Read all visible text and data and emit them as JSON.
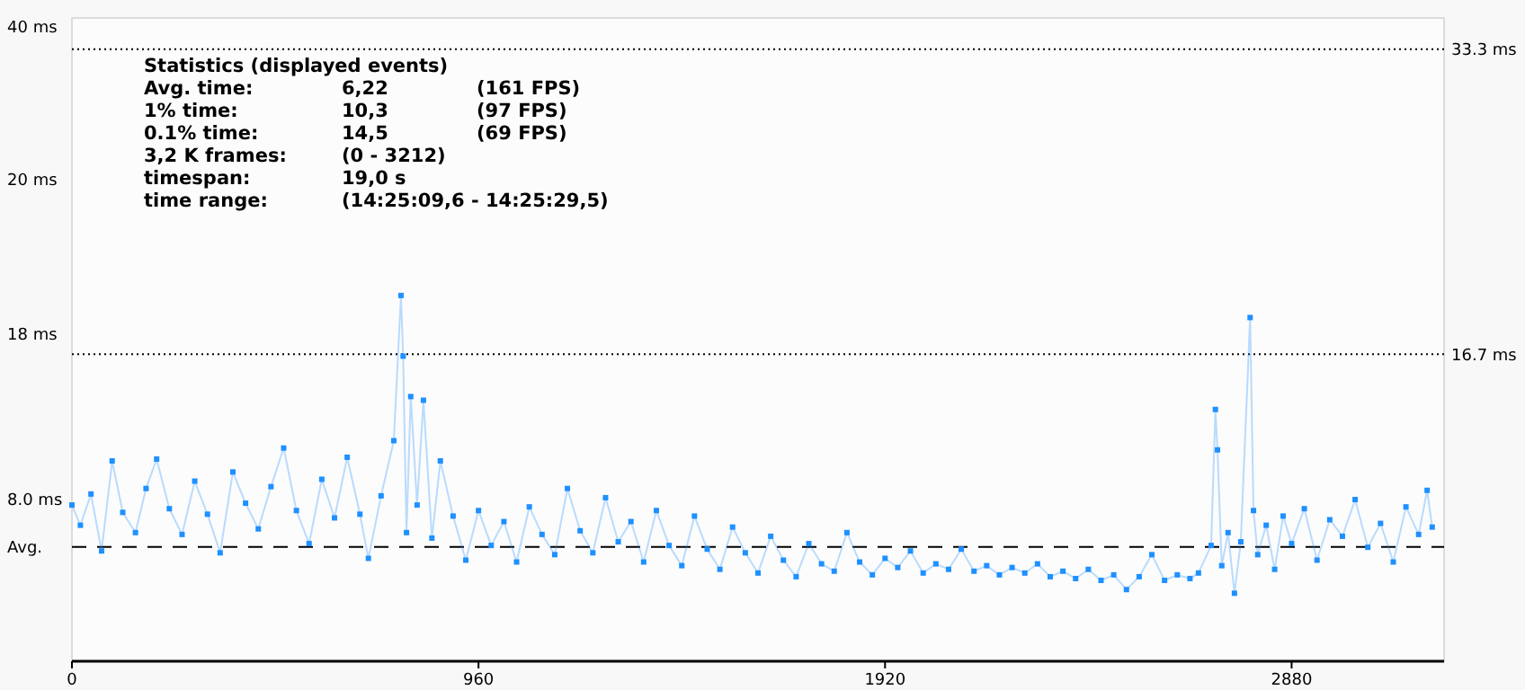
{
  "chart_data": {
    "type": "line",
    "marker": "square",
    "color": "#1e90ff",
    "xlim": [
      0,
      3240
    ],
    "xticks": [
      0,
      960,
      1920,
      2880
    ],
    "ylim": [
      0,
      35
    ],
    "yticks": [
      {
        "value": 33.3,
        "label": "33.3 ms"
      },
      {
        "value": 16.7,
        "label": "16.7 ms"
      }
    ],
    "ref_lines": [
      {
        "axis": "y",
        "value": 33.3,
        "line_style": "dotted",
        "color": "#000000"
      },
      {
        "axis": "y",
        "value": 16.7,
        "line_style": "dotted",
        "color": "#000000"
      },
      {
        "axis": "y",
        "value": 6.22,
        "label": "Avg.",
        "line_style": "dashed",
        "color": "#000000"
      }
    ],
    "annotations": [
      "Statistics (displayed events)",
      "Avg. time:\t6,22\t(161 FPS)",
      "1% time:\t10,3\t(97 FPS)",
      "0.1% time:\t14,5\t(69 FPS)",
      "3,2 K frames:\t(0 - 3212)",
      "timespan:\t19,0 s",
      "time range:\t(14:25:09,6 - 14:25:29,5)",
      "40 ms",
      "20 ms",
      "18 ms",
      "8.0 ms"
    ],
    "x": [
      0,
      20,
      45,
      70,
      95,
      120,
      150,
      175,
      200,
      230,
      260,
      290,
      320,
      350,
      380,
      410,
      440,
      470,
      500,
      530,
      560,
      590,
      620,
      650,
      680,
      700,
      730,
      760,
      777,
      782,
      790,
      800,
      815,
      830,
      850,
      870,
      900,
      930,
      960,
      990,
      1020,
      1050,
      1080,
      1110,
      1140,
      1170,
      1200,
      1230,
      1260,
      1290,
      1320,
      1350,
      1380,
      1410,
      1440,
      1470,
      1500,
      1530,
      1560,
      1590,
      1620,
      1650,
      1680,
      1710,
      1740,
      1770,
      1800,
      1830,
      1860,
      1890,
      1920,
      1950,
      1980,
      2010,
      2040,
      2070,
      2100,
      2130,
      2160,
      2190,
      2220,
      2250,
      2280,
      2310,
      2340,
      2370,
      2400,
      2430,
      2460,
      2490,
      2520,
      2550,
      2580,
      2610,
      2640,
      2660,
      2690,
      2700,
      2705,
      2715,
      2730,
      2745,
      2760,
      2782,
      2790,
      2800,
      2820,
      2840,
      2860,
      2880,
      2910,
      2940,
      2970,
      3000,
      3030,
      3060,
      3090,
      3120,
      3150,
      3180,
      3200,
      3212
    ],
    "values": [
      8.5,
      7.4,
      9.1,
      6.0,
      10.9,
      8.1,
      7.0,
      9.4,
      11.0,
      8.3,
      6.9,
      9.8,
      8.0,
      5.9,
      10.3,
      8.6,
      7.2,
      9.5,
      11.6,
      8.2,
      6.4,
      9.9,
      7.8,
      11.1,
      8.0,
      5.6,
      9.0,
      12.0,
      19.9,
      16.6,
      7.0,
      14.4,
      8.5,
      14.2,
      6.7,
      10.9,
      7.9,
      5.5,
      8.2,
      6.3,
      7.6,
      5.4,
      8.4,
      6.9,
      5.8,
      9.4,
      7.1,
      5.9,
      8.9,
      6.5,
      7.6,
      5.4,
      8.2,
      6.3,
      5.2,
      7.9,
      6.1,
      5.0,
      7.3,
      5.9,
      4.8,
      6.8,
      5.5,
      4.6,
      6.4,
      5.3,
      4.9,
      7.0,
      5.4,
      4.7,
      5.6,
      5.1,
      6.0,
      4.8,
      5.3,
      5.0,
      6.1,
      4.9,
      5.2,
      4.7,
      5.1,
      4.8,
      5.3,
      4.6,
      4.9,
      4.5,
      5.0,
      4.4,
      4.7,
      3.9,
      4.6,
      5.8,
      4.4,
      4.7,
      4.5,
      4.8,
      6.3,
      13.7,
      11.5,
      5.2,
      7.0,
      3.7,
      6.5,
      18.7,
      8.2,
      5.8,
      7.4,
      5.0,
      7.9,
      6.4,
      8.3,
      5.5,
      7.7,
      6.8,
      8.8,
      6.2,
      7.5,
      5.4,
      8.4,
      6.9,
      9.3,
      7.3
    ]
  }
}
